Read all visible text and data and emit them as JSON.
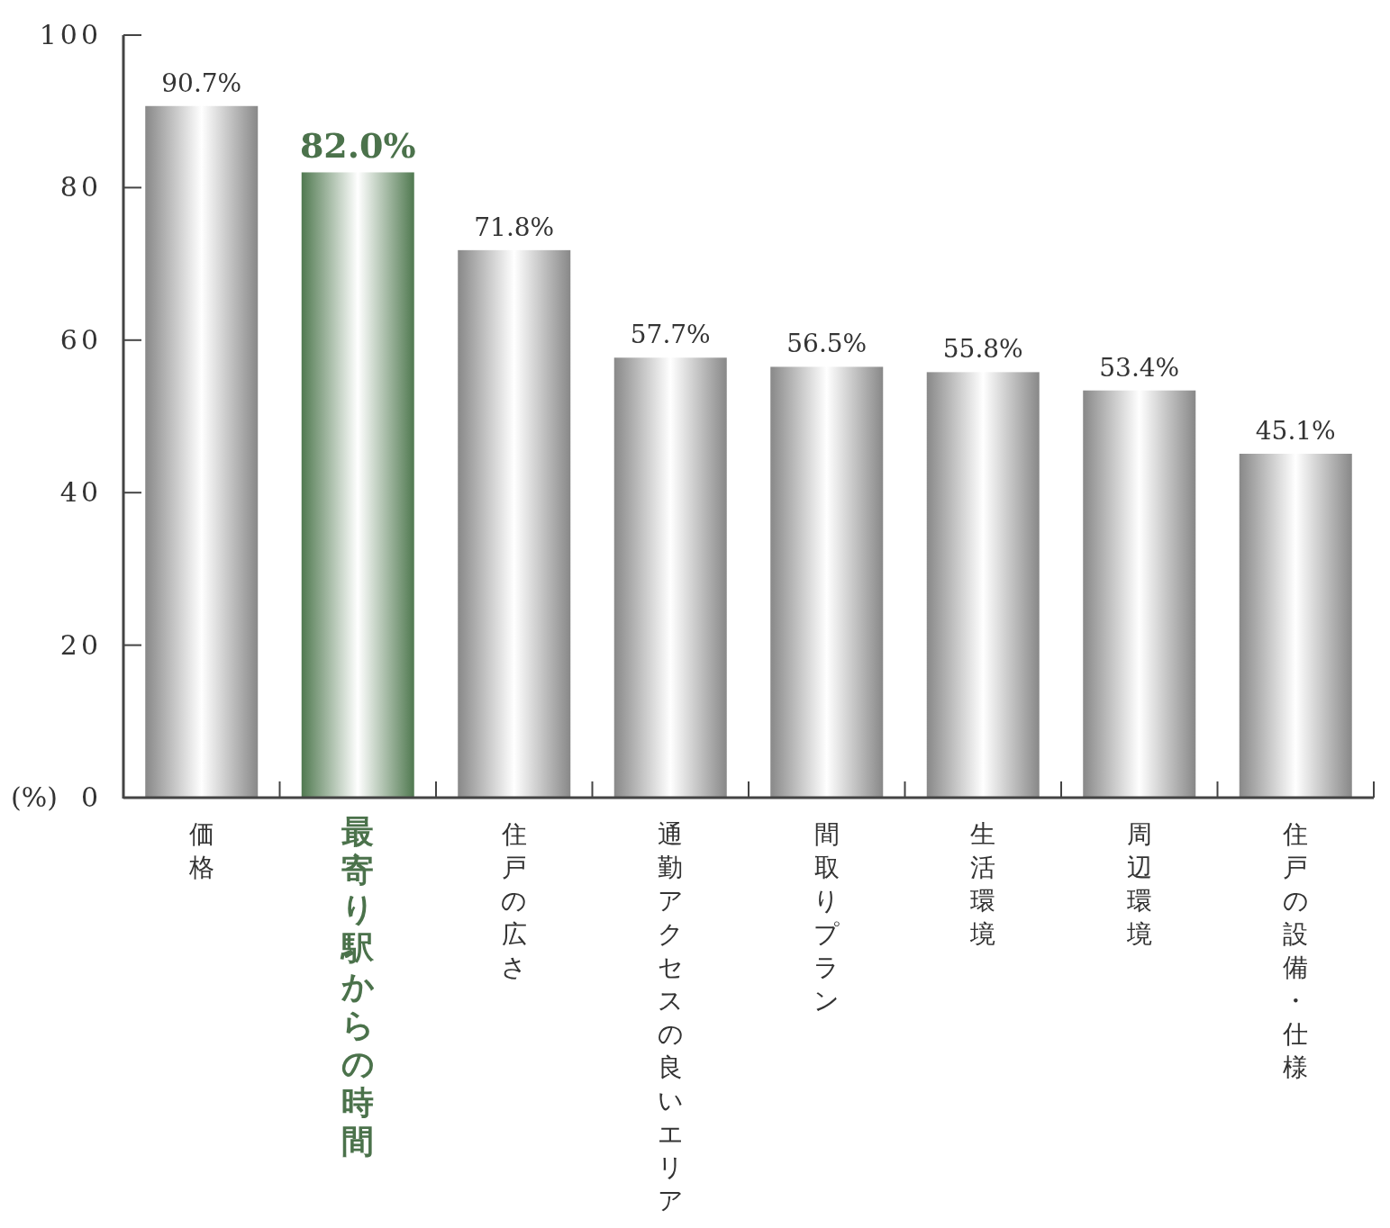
{
  "chart_data": {
    "type": "bar",
    "categories": [
      "価格",
      "最寄り駅からの時間",
      "住戸の広さ",
      "通勤アクセスの良いエリア",
      "間取りプラン",
      "生活環境",
      "周辺環境",
      "住戸の設備・仕様"
    ],
    "values": [
      90.7,
      82.0,
      71.8,
      57.7,
      56.5,
      55.8,
      53.4,
      45.1
    ],
    "value_labels": [
      "90.7%",
      "82.0%",
      "71.8%",
      "57.7%",
      "56.5%",
      "55.8%",
      "53.4%",
      "45.1%"
    ],
    "colors": [
      "#a0a0a0",
      "#5e8e5e",
      "#a0a0a0",
      "#a0a0a0",
      "#a0a0a0",
      "#a0a0a0",
      "#a0a0a0",
      "#a0a0a0"
    ],
    "ylabel": "(%)",
    "ylim": [
      0,
      100
    ],
    "yticks": [
      0,
      20,
      40,
      60,
      80,
      100
    ],
    "grid": false
  }
}
